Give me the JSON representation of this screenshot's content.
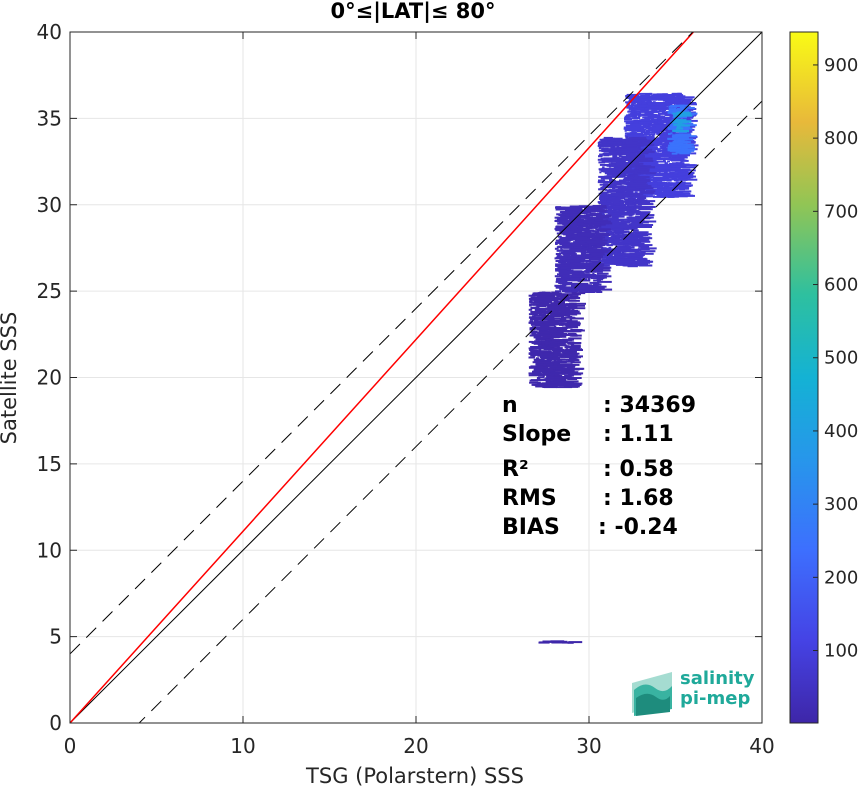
{
  "chart_data": {
    "type": "heatmap",
    "title": "0°≤|LAT|≤ 80°",
    "xlabel": "TSG (Polarstern) SSS",
    "ylabel": "Satellite SSS",
    "xlim": [
      0,
      40
    ],
    "ylim": [
      0,
      40
    ],
    "xticks": [
      "0",
      "10",
      "20",
      "30",
      "40"
    ],
    "yticks": [
      "0",
      "5",
      "10",
      "15",
      "20",
      "25",
      "30",
      "35",
      "40"
    ],
    "grid": true,
    "colorbar": {
      "range": [
        1,
        945
      ],
      "ticks": [
        "100",
        "200",
        "300",
        "400",
        "500",
        "600",
        "700",
        "800",
        "900"
      ],
      "colormap": "parula"
    },
    "lines": [
      {
        "kind": "identity",
        "slope": 1,
        "intercept": 0,
        "color": "#000000",
        "style": "solid"
      },
      {
        "kind": "fit",
        "slope": 1.11,
        "intercept": 0,
        "color": "#ff0000",
        "style": "solid"
      },
      {
        "kind": "upper-bound",
        "slope": 1,
        "intercept": 4,
        "color": "#000000",
        "style": "dashed"
      },
      {
        "kind": "lower-bound",
        "slope": 1,
        "intercept": -4,
        "color": "#000000",
        "style": "dashed"
      }
    ],
    "density_regions": [
      {
        "x": [
          32,
          35.5
        ],
        "y": [
          30.5,
          36.5
        ],
        "count": 100
      },
      {
        "x": [
          34.5,
          35.4
        ],
        "y": [
          33,
          35.8
        ],
        "count": 250
      },
      {
        "x": [
          34.8,
          35.2
        ],
        "y": [
          34.3,
          35.4
        ],
        "count": 400
      },
      {
        "x": [
          30.5,
          33
        ],
        "y": [
          26.5,
          34
        ],
        "count": 60
      },
      {
        "x": [
          28,
          30.5
        ],
        "y": [
          25,
          30
        ],
        "count": 30
      },
      {
        "x": [
          26.5,
          29
        ],
        "y": [
          19.5,
          25
        ],
        "count": 10
      },
      {
        "x": [
          27,
          29
        ],
        "y": [
          4.7,
          4.8
        ],
        "count": 5
      }
    ],
    "stats": [
      {
        "label": "n",
        "value": ": 34369"
      },
      {
        "label": "Slope",
        "value": ": 1.11"
      },
      {
        "label": "R²",
        "value": ": 0.58"
      },
      {
        "label": "RMS",
        "value": ": 1.68"
      },
      {
        "label": "BIAS",
        "value": ": -0.24"
      }
    ]
  },
  "logo": {
    "line1": "salinity",
    "line2": "pi-mep"
  }
}
